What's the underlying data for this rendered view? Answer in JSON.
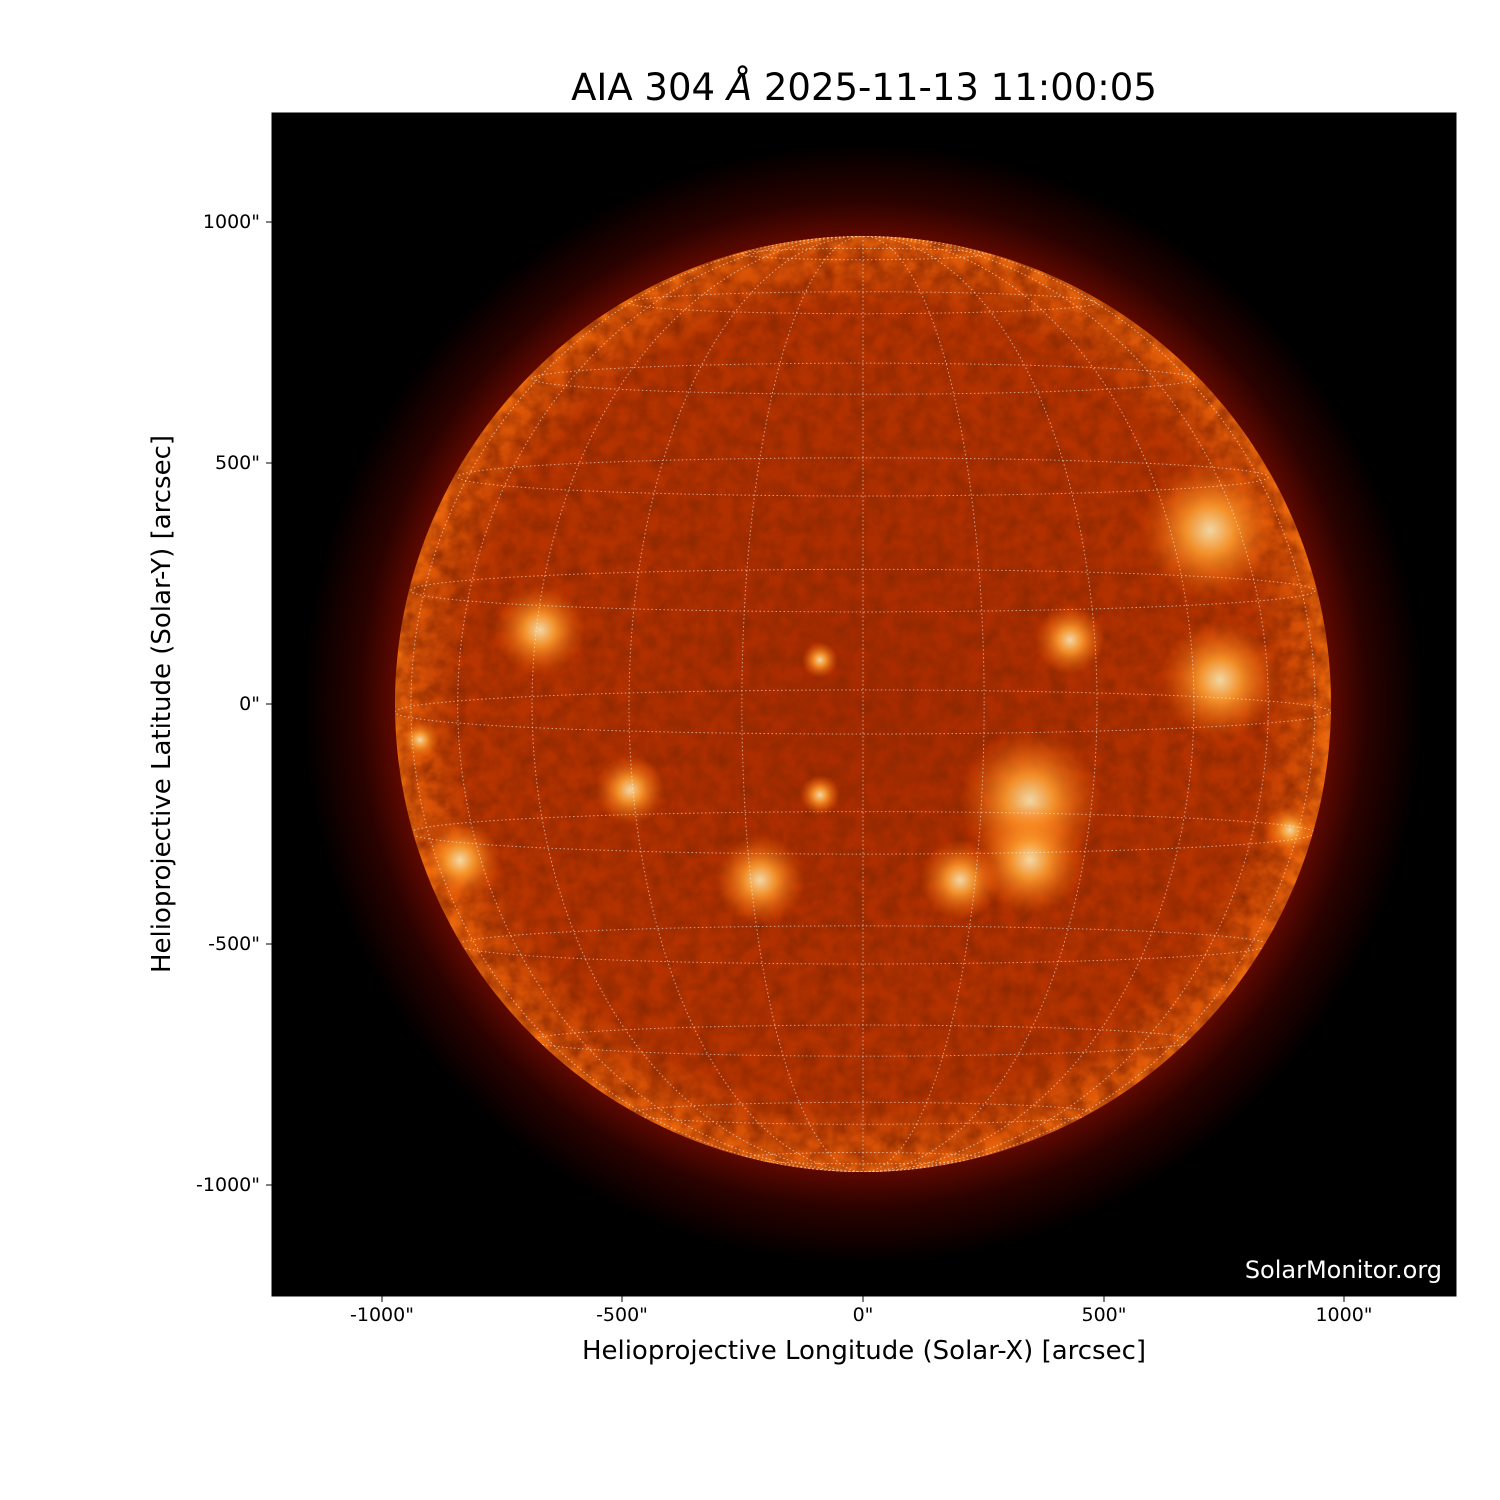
{
  "title": {
    "instrument": "AIA 304",
    "unit": "Å",
    "datetime": "2025-11-13 11:00:05"
  },
  "axes": {
    "xlabel": "Helioprojective Longitude (Solar-X) [arcsec]",
    "ylabel": "Helioprojective Latitude (Solar-Y) [arcsec]",
    "xticks": [
      "-1000\"",
      "-500\"",
      "0\"",
      "500\"",
      "1000\""
    ],
    "yticks": [
      "1000\"",
      "500\"",
      "0\"",
      "-500\"",
      "-1000\""
    ],
    "xlim_arcsec": [
      -1250,
      1230
    ],
    "ylim_arcsec": [
      -1230,
      1230
    ]
  },
  "image": {
    "colormap": "sdoaia304",
    "background": "#000000",
    "grid": "heliographic, dotted white, 15° spacing"
  },
  "watermark": "SolarMonitor.org"
}
